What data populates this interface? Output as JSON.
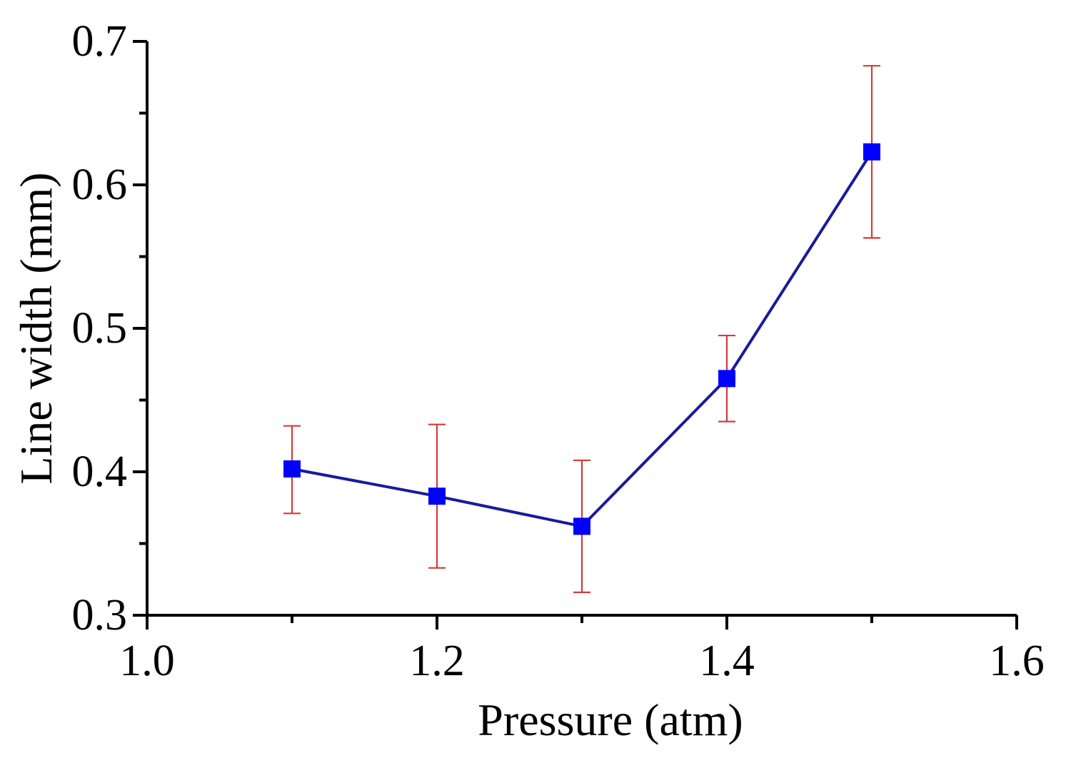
{
  "chart_data": {
    "type": "line",
    "title": "",
    "xlabel": "Pressure (atm)",
    "ylabel": "Line width (mm)",
    "xlim": [
      1.0,
      1.6
    ],
    "ylim": [
      0.3,
      0.7
    ],
    "x_ticks": [
      1.0,
      1.2,
      1.4,
      1.6
    ],
    "x_tick_labels": [
      "1.0",
      "1.2",
      "1.4",
      "1.6"
    ],
    "y_ticks": [
      0.3,
      0.4,
      0.5,
      0.6,
      0.7
    ],
    "y_tick_labels": [
      "0.3",
      "0.4",
      "0.5",
      "0.6",
      "0.7"
    ],
    "grid": false,
    "legend": "none",
    "series": [
      {
        "name": "Line width",
        "x": [
          1.1,
          1.2,
          1.3,
          1.4,
          1.5
        ],
        "values": [
          0.402,
          0.383,
          0.362,
          0.465,
          0.623
        ],
        "error_low": [
          0.371,
          0.333,
          0.316,
          0.435,
          0.563
        ],
        "error_high": [
          0.432,
          0.433,
          0.408,
          0.495,
          0.683
        ],
        "line_color": "#1a1a9c",
        "marker_color": "#0000ff",
        "error_color": "#d63a3a"
      }
    ]
  }
}
